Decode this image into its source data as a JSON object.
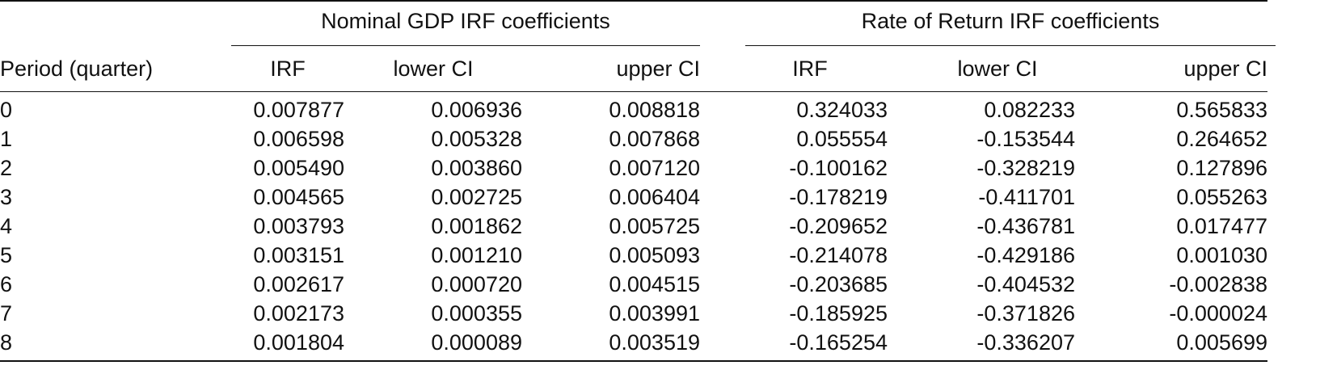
{
  "table": {
    "group_headers": [
      "Nominal GDP IRF coefficients",
      "Rate of Return IRF coefficients"
    ],
    "columns": [
      "Period (quarter)",
      "IRF",
      "lower CI",
      "upper CI",
      "IRF",
      "lower CI",
      "upper CI"
    ],
    "rows": [
      [
        "0",
        "0.007877",
        "0.006936",
        "0.008818",
        "0.324033",
        "0.082233",
        "0.565833"
      ],
      [
        "1",
        "0.006598",
        "0.005328",
        "0.007868",
        "0.055554",
        "-0.153544",
        "0.264652"
      ],
      [
        "2",
        "0.005490",
        "0.003860",
        "0.007120",
        "-0.100162",
        "-0.328219",
        "0.127896"
      ],
      [
        "3",
        "0.004565",
        "0.002725",
        "0.006404",
        "-0.178219",
        "-0.411701",
        "0.055263"
      ],
      [
        "4",
        "0.003793",
        "0.001862",
        "0.005725",
        "-0.209652",
        "-0.436781",
        "0.017477"
      ],
      [
        "5",
        "0.003151",
        "0.001210",
        "0.005093",
        "-0.214078",
        "-0.429186",
        "0.001030"
      ],
      [
        "6",
        "0.002617",
        "0.000720",
        "0.004515",
        "-0.203685",
        "-0.404532",
        "-0.002838"
      ],
      [
        "7",
        "0.002173",
        "0.000355",
        "0.003991",
        "-0.185925",
        "-0.371826",
        "-0.000024"
      ],
      [
        "8",
        "0.001804",
        "0.000089",
        "0.003519",
        "-0.165254",
        "-0.336207",
        "0.005699"
      ]
    ]
  }
}
